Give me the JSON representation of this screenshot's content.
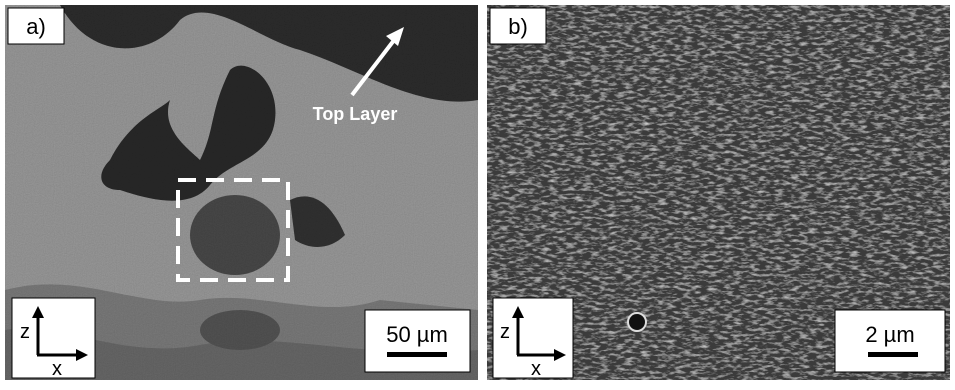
{
  "panels": [
    {
      "label": "a)",
      "annotation": "Top Layer",
      "scale_bar": "50 µm",
      "axes": {
        "vertical": "z",
        "horizontal": "x"
      }
    },
    {
      "label": "b)",
      "scale_bar": "2 µm",
      "axes": {
        "vertical": "z",
        "horizontal": "x"
      }
    }
  ]
}
